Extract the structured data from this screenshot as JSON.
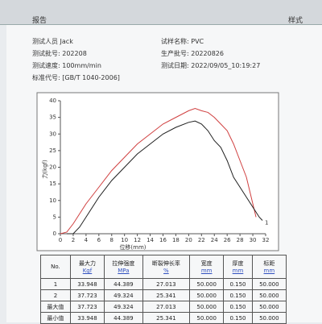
{
  "toolbar": {
    "left_tab": "报告",
    "right_tab": "样式"
  },
  "info": [
    {
      "label": "测试人员",
      "value": "Jack"
    },
    {
      "label": "测试批号:",
      "value": "202208"
    },
    {
      "label": "测试速度:",
      "value": "100mm/min"
    },
    {
      "label": "标准代号:",
      "value": "[GB/T 1040-2006]"
    },
    {
      "label": "试样名称:",
      "value": "PVC"
    },
    {
      "label": "生产批号:",
      "value": "20220826"
    },
    {
      "label": "测试日期:",
      "value": "2022/09/05_10:19:27"
    }
  ],
  "chart_data": {
    "type": "line",
    "x_label": "位移(mm)",
    "y_label": "力(kgf)",
    "xlim": [
      0,
      32
    ],
    "ylim": [
      0,
      40
    ],
    "xticks": [
      0,
      2,
      4,
      6,
      8,
      10,
      12,
      14,
      16,
      18,
      20,
      22,
      24,
      26,
      28,
      30,
      32
    ],
    "yticks": [
      0,
      5,
      10,
      15,
      20,
      25,
      30,
      35,
      40
    ],
    "end_label": "1",
    "series": [
      {
        "color": "#d04040",
        "x": [
          0,
          1,
          2,
          3,
          4,
          6,
          8,
          10,
          12,
          14,
          16,
          18,
          19,
          20,
          21,
          22,
          23,
          24,
          25,
          26,
          27,
          28,
          29,
          30,
          30.5
        ],
        "values": [
          0,
          0.5,
          3,
          6,
          9,
          14,
          19,
          23,
          27,
          30,
          33,
          35,
          36,
          37,
          37.7,
          37,
          36.5,
          35,
          33,
          31,
          27,
          22,
          17,
          9,
          5
        ]
      },
      {
        "color": "#202020",
        "x": [
          1,
          2,
          3,
          4,
          6,
          8,
          10,
          12,
          14,
          16,
          18,
          20,
          21,
          22,
          23,
          24,
          25,
          26,
          27,
          28,
          29,
          30,
          31,
          31.5
        ],
        "values": [
          0,
          0,
          2,
          5,
          11,
          16,
          20,
          24,
          27,
          30,
          32,
          33.5,
          33.9,
          33,
          31,
          28,
          26,
          22,
          17,
          14,
          11,
          8,
          5,
          4
        ]
      }
    ]
  },
  "table": {
    "columns": [
      {
        "name": "No.",
        "unit": ""
      },
      {
        "name": "最大力",
        "unit": "Kgf"
      },
      {
        "name": "拉伸强度",
        "unit": "MPa"
      },
      {
        "name": "断裂伸长率",
        "unit": "%"
      },
      {
        "name": "宽度",
        "unit": "mm"
      },
      {
        "name": "厚度",
        "unit": "mm"
      },
      {
        "name": "标距",
        "unit": "mm"
      }
    ],
    "rows": [
      [
        "1",
        "33.948",
        "44.389",
        "27.013",
        "50.000",
        "0.150",
        "50.000"
      ],
      [
        "2",
        "37.723",
        "49.324",
        "25.341",
        "50.000",
        "0.150",
        "50.000"
      ],
      [
        "最大值",
        "37.723",
        "49.324",
        "27.013",
        "50.000",
        "0.150",
        "50.000"
      ],
      [
        "最小值",
        "33.948",
        "44.389",
        "25.341",
        "50.000",
        "0.150",
        "50.000"
      ]
    ]
  }
}
